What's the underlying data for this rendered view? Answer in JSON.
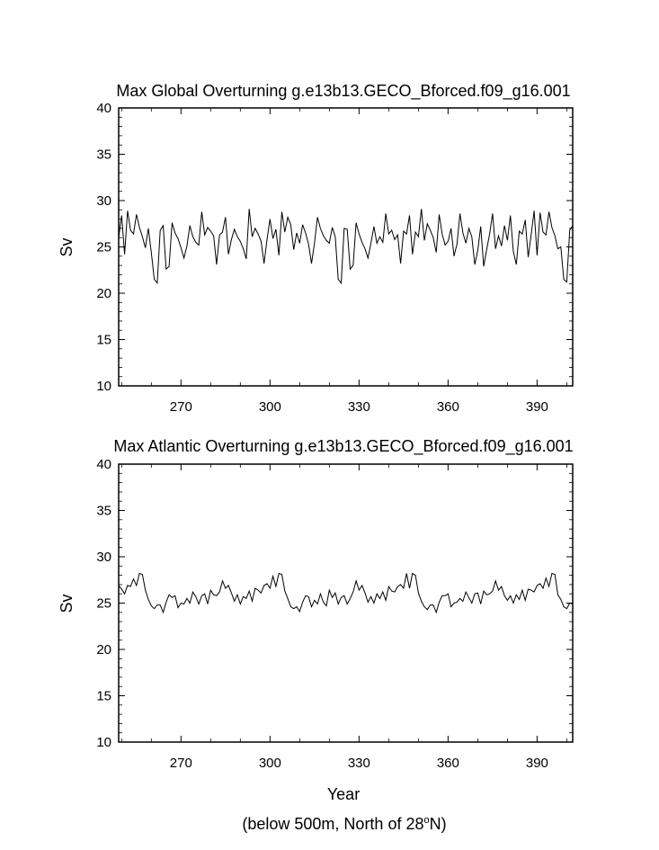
{
  "footnote": {
    "prefix": "(below 500m, North of 28",
    "sup": "o",
    "suffix": "N)"
  },
  "chart_data": [
    {
      "type": "line",
      "title": "Max Global Overturning g.e13b13.GECO_Bforced.f09_g16.001",
      "xlabel": "",
      "ylabel": "Sv",
      "xlim": [
        249,
        402
      ],
      "ylim": [
        10,
        40
      ],
      "xticks": [
        270,
        300,
        330,
        360,
        390
      ],
      "yticks": [
        10,
        15,
        20,
        25,
        30,
        35,
        40
      ],
      "color": "#000000",
      "x": [
        249,
        250,
        251,
        252,
        253,
        254,
        255,
        256,
        257,
        258,
        259,
        260,
        261,
        262,
        263,
        264,
        265,
        266,
        267,
        268,
        269,
        270,
        271,
        272,
        273,
        274,
        275,
        276,
        277,
        278,
        279,
        280,
        281,
        282,
        283,
        284,
        285,
        286,
        287,
        288,
        289,
        290,
        291,
        292,
        293,
        294,
        295,
        296,
        297,
        298,
        299,
        300,
        301,
        302,
        303,
        304,
        305,
        306,
        307,
        308,
        309,
        310,
        311,
        312,
        313,
        314,
        315,
        316,
        317,
        318,
        319,
        320,
        321,
        322,
        323,
        324,
        325,
        326,
        327,
        328,
        329,
        330,
        331,
        332,
        333,
        334,
        335,
        336,
        337,
        338,
        339,
        340,
        341,
        342,
        343,
        344,
        345,
        346,
        347,
        348,
        349,
        350,
        351,
        352,
        353,
        354,
        355,
        356,
        357,
        358,
        359,
        360,
        361,
        362,
        363,
        364,
        365,
        366,
        367,
        368,
        369,
        370,
        371,
        372,
        373,
        374,
        375,
        376,
        377,
        378,
        379,
        380,
        381,
        382,
        383,
        384,
        385,
        386,
        387,
        388,
        389,
        390,
        391,
        392,
        393,
        394,
        395,
        396,
        397,
        398,
        399,
        400,
        401,
        402
      ],
      "values": [
        26,
        28.4,
        24.2,
        28.9,
        26.8,
        26.4,
        28.5,
        27.1,
        26.1,
        24.9,
        27,
        24.4,
        21.5,
        21.1,
        26.8,
        27.3,
        22.6,
        22.9,
        27.6,
        26.5,
        25.9,
        24.9,
        23.8,
        25.1,
        27.3,
        26.1,
        25.5,
        25.2,
        28.8,
        26.3,
        27.1,
        26.7,
        26.2,
        23.1,
        26.3,
        26.6,
        28.2,
        24.2,
        25.8,
        26.9,
        26.1,
        25.6,
        24.8,
        23.7,
        29.1,
        26.1,
        27,
        26.4,
        25.6,
        23.2,
        25.8,
        28,
        25.9,
        26.9,
        24.1,
        28.8,
        26.6,
        28.2,
        27.4,
        24.7,
        26.5,
        25.4,
        27.4,
        26.5,
        25.3,
        23.2,
        25.4,
        28.2,
        27,
        26.2,
        25.7,
        25.4,
        27.1,
        26.1,
        21.5,
        21.1,
        27,
        26.9,
        22.6,
        23,
        27.6,
        26.4,
        25.5,
        24.8,
        23.8,
        25.4,
        27.2,
        25.4,
        26.1,
        25.5,
        28.6,
        26.4,
        26.8,
        25.8,
        26.3,
        23.2,
        26.7,
        26.4,
        28.4,
        24.2,
        26.6,
        26.1,
        29.1,
        25.7,
        27.5,
        26.8,
        26,
        24.4,
        28.5,
        26.4,
        25.2,
        25.6,
        27,
        24,
        25.3,
        28.6,
        26.5,
        25.4,
        27,
        26.1,
        23.1,
        24.6,
        27.2,
        22.9,
        24.7,
        26.4,
        28.6,
        24.8,
        26.2,
        25.1,
        27.3,
        25.7,
        28.4,
        24.5,
        23.1,
        26.7,
        26.4,
        27.9,
        23.9,
        26.3,
        28.9,
        24.1,
        28.7,
        26.6,
        26.3,
        28.8,
        27.1,
        26.2,
        24.8,
        25,
        21.5,
        21.2,
        26.8,
        27.3
      ]
    },
    {
      "type": "line",
      "title": "Max Atlantic Overturning g.e13b13.GECO_Bforced.f09_g16.001",
      "xlabel": "Year",
      "ylabel": "Sv",
      "xlim": [
        249,
        402
      ],
      "ylim": [
        10,
        40
      ],
      "xticks": [
        270,
        300,
        330,
        360,
        390
      ],
      "yticks": [
        10,
        15,
        20,
        25,
        30,
        35,
        40
      ],
      "color": "#000000",
      "x": [
        249,
        250,
        251,
        252,
        253,
        254,
        255,
        256,
        257,
        258,
        259,
        260,
        261,
        262,
        263,
        264,
        265,
        266,
        267,
        268,
        269,
        270,
        271,
        272,
        273,
        274,
        275,
        276,
        277,
        278,
        279,
        280,
        281,
        282,
        283,
        284,
        285,
        286,
        287,
        288,
        289,
        290,
        291,
        292,
        293,
        294,
        295,
        296,
        297,
        298,
        299,
        300,
        301,
        302,
        303,
        304,
        305,
        306,
        307,
        308,
        309,
        310,
        311,
        312,
        313,
        314,
        315,
        316,
        317,
        318,
        319,
        320,
        321,
        322,
        323,
        324,
        325,
        326,
        327,
        328,
        329,
        330,
        331,
        332,
        333,
        334,
        335,
        336,
        337,
        338,
        339,
        340,
        341,
        342,
        343,
        344,
        345,
        346,
        347,
        348,
        349,
        350,
        351,
        352,
        353,
        354,
        355,
        356,
        357,
        358,
        359,
        360,
        361,
        362,
        363,
        364,
        365,
        366,
        367,
        368,
        369,
        370,
        371,
        372,
        373,
        374,
        375,
        376,
        377,
        378,
        379,
        380,
        381,
        382,
        383,
        384,
        385,
        386,
        387,
        388,
        389,
        390,
        391,
        392,
        393,
        394,
        395,
        396,
        397,
        398,
        399,
        400,
        401,
        402
      ],
      "values": [
        26.9,
        26.5,
        26,
        26.9,
        26.8,
        27.6,
        26.9,
        28.2,
        28.1,
        26.4,
        25.4,
        24.7,
        24.4,
        24.8,
        24.8,
        24,
        25.1,
        25.9,
        25.6,
        25.8,
        24.5,
        25,
        24.9,
        25.5,
        25,
        26.2,
        25.7,
        24.9,
        25.8,
        26,
        24.9,
        26.4,
        25.9,
        25.8,
        26.2,
        27.4,
        26.6,
        26.9,
        26.1,
        25.2,
        25.9,
        24.9,
        25.7,
        25.5,
        26.3,
        25.2,
        26.6,
        26.4,
        26.1,
        26.9,
        27.1,
        26.6,
        27.9,
        26.8,
        28.2,
        28.1,
        26.3,
        25.5,
        24.6,
        24.4,
        24.6,
        24.1,
        25.1,
        25.8,
        25.7,
        24.6,
        25.3,
        24.9,
        26,
        25.1,
        24.7,
        26.4,
        25.6,
        26.1,
        24.9,
        25.6,
        25.8,
        24.9,
        25.5,
        26.2,
        27.4,
        26.4,
        26.9,
        26.1,
        25.1,
        25.7,
        25,
        26,
        25.5,
        26.2,
        25.3,
        26.8,
        26.3,
        26.2,
        26.8,
        27,
        26.6,
        28.2,
        26.6,
        28.2,
        28,
        26.1,
        25.2,
        24.6,
        24.3,
        24.8,
        24.8,
        24,
        25.1,
        25.8,
        25.8,
        26,
        24.6,
        25,
        25.1,
        25.5,
        25.2,
        26.2,
        25.6,
        25,
        26,
        26.1,
        24.9,
        26.3,
        25.9,
        26,
        26.3,
        27.4,
        26.4,
        26.8,
        25.8,
        25.3,
        25.8,
        25,
        25.9,
        25.4,
        26.4,
        25.3,
        26.5,
        26.4,
        26.2,
        26.9,
        27.1,
        26.6,
        27.7,
        26.8,
        28.2,
        28.1,
        25.9,
        25.4,
        24.6,
        24.4,
        25,
        24.9
      ]
    }
  ]
}
